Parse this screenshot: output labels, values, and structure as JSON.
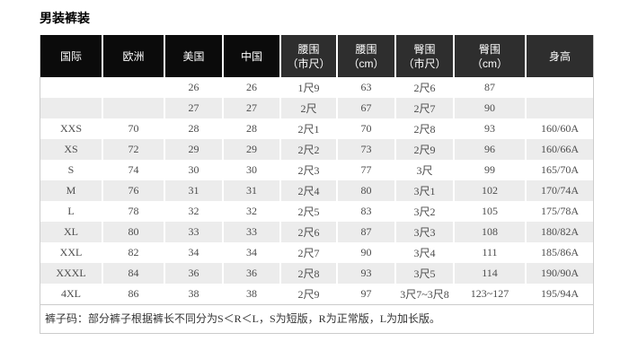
{
  "page": {
    "title": "男装裤装"
  },
  "colors": {
    "header_black": "#0b0b0b",
    "header_gray": "#2e2e2e",
    "row_alt": "#ececec",
    "border": "#cccccc",
    "body_text": "#4c4c4c",
    "header_text": "#ffffff"
  },
  "table": {
    "headers": [
      {
        "lines": [
          "国际"
        ],
        "tone": "black"
      },
      {
        "lines": [
          "欧洲"
        ],
        "tone": "black"
      },
      {
        "lines": [
          "美国"
        ],
        "tone": "black"
      },
      {
        "lines": [
          "中国"
        ],
        "tone": "black"
      },
      {
        "lines": [
          "腰围",
          "（市尺）"
        ],
        "tone": "gray"
      },
      {
        "lines": [
          "腰围",
          "（cm）"
        ],
        "tone": "gray"
      },
      {
        "lines": [
          "臀围",
          "（市尺）"
        ],
        "tone": "gray"
      },
      {
        "lines": [
          "臀围",
          "（cm）"
        ],
        "tone": "gray"
      },
      {
        "lines": [
          "身高"
        ],
        "tone": "gray"
      }
    ],
    "rows": [
      [
        "",
        "",
        "26",
        "26",
        "1尺9",
        "63",
        "2尺6",
        "87",
        ""
      ],
      [
        "",
        "",
        "27",
        "27",
        "2尺",
        "67",
        "2尺7",
        "90",
        ""
      ],
      [
        "XXS",
        "70",
        "28",
        "28",
        "2尺1",
        "70",
        "2尺8",
        "93",
        "160/60A"
      ],
      [
        "XS",
        "72",
        "29",
        "29",
        "2尺2",
        "73",
        "2尺9",
        "96",
        "160/66A"
      ],
      [
        "S",
        "74",
        "30",
        "30",
        "2尺3",
        "77",
        "3尺",
        "99",
        "165/70A"
      ],
      [
        "M",
        "76",
        "31",
        "31",
        "2尺4",
        "80",
        "3尺1",
        "102",
        "170/74A"
      ],
      [
        "L",
        "78",
        "32",
        "32",
        "2尺5",
        "83",
        "3尺2",
        "105",
        "175/78A"
      ],
      [
        "XL",
        "80",
        "33",
        "33",
        "2尺6",
        "87",
        "3尺3",
        "108",
        "180/82A"
      ],
      [
        "XXL",
        "82",
        "34",
        "34",
        "2尺7",
        "90",
        "3尺4",
        "111",
        "185/86A"
      ],
      [
        "XXXL",
        "84",
        "36",
        "36",
        "2尺8",
        "93",
        "3尺5",
        "114",
        "190/90A"
      ],
      [
        "4XL",
        "86",
        "38",
        "38",
        "2尺9",
        "97",
        "3尺7~3尺8",
        "123~127",
        "195/94A"
      ]
    ]
  },
  "footnote": "裤子码：部分裤子根据裤长不同分为S＜R＜L，S为短版，R为正常版，L为加长版。"
}
